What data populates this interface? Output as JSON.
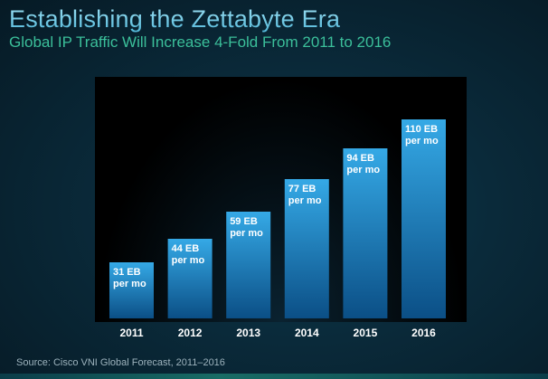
{
  "title": "Establishing the Zettabyte Era",
  "subtitle": "Global IP Traffic Will Increase 4-Fold From 2011 to 2016",
  "source": "Source: Cisco VNI Global Forecast, 2011–2016",
  "colors": {
    "bar_top": "#35a9e6",
    "bar_bottom": "#0b4f86"
  },
  "chart_data": {
    "type": "bar",
    "categories": [
      "2011",
      "2012",
      "2013",
      "2014",
      "2015",
      "2016"
    ],
    "values": [
      31,
      44,
      59,
      77,
      94,
      110
    ],
    "units": "EB per mo",
    "data_labels": [
      [
        "31 EB",
        "per mo"
      ],
      [
        "44 EB",
        "per mo"
      ],
      [
        "59 EB",
        "per mo"
      ],
      [
        "77 EB",
        "per mo"
      ],
      [
        "94 EB",
        "per mo"
      ],
      [
        "110 EB",
        "per mo"
      ]
    ],
    "ylim": [
      0,
      120
    ],
    "grid": false,
    "legend": "none"
  }
}
